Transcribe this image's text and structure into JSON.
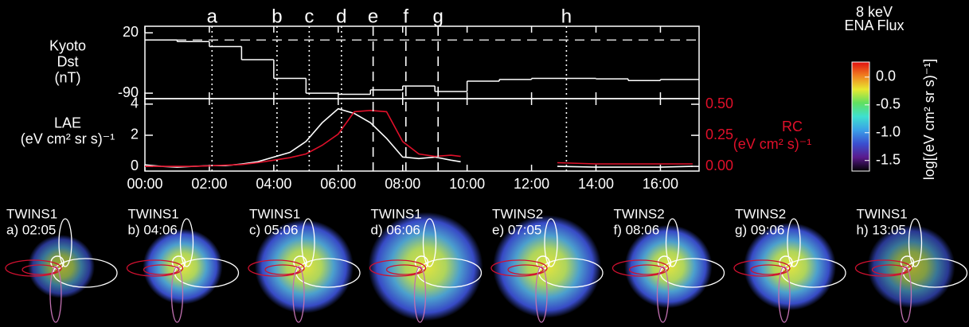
{
  "chart_data": [
    {
      "type": "line",
      "step": true,
      "ylabel": [
        "Kyoto",
        "Dst",
        "(nT)"
      ],
      "x": [
        0,
        1,
        2,
        3,
        4,
        5,
        6,
        7,
        8,
        9,
        10,
        11,
        12,
        13,
        14,
        15,
        16
      ],
      "series": [
        {
          "color": "#ffffff",
          "values": [
            7,
            4,
            -5,
            -29,
            -63,
            -90,
            -92,
            -84,
            -77,
            -87,
            -68,
            -65,
            -63,
            -63,
            -64,
            -67,
            -65
          ]
        }
      ],
      "reference_line": 7,
      "xlim": [
        0,
        17.2
      ],
      "ylim": [
        -100,
        32
      ],
      "yticks": [
        20,
        -90
      ]
    },
    {
      "type": "line",
      "ylabel": [
        "LAE",
        "(eV cm² sr s)⁻¹"
      ],
      "y2label": [
        "RC",
        "(eV cm² s)⁻¹"
      ],
      "x": [
        0,
        0.5,
        1,
        1.5,
        2,
        2.5,
        3,
        3.5,
        4,
        4.5,
        5,
        5.5,
        6,
        6.5,
        7,
        7.5,
        8,
        8.5,
        9,
        9.5,
        9.8,
        11,
        12.8,
        14,
        15,
        16,
        17
      ],
      "series": [
        {
          "color": "#ffffff",
          "values": [
            0.1,
            0.0,
            -0.05,
            0,
            0.05,
            0.05,
            0.15,
            0.3,
            0.6,
            0.9,
            1.6,
            2.8,
            3.7,
            3.4,
            2.8,
            1.8,
            0.6,
            0.5,
            0.6,
            0.4,
            0.3,
            null,
            0.0,
            -0.05,
            -0.05,
            -0.05,
            0.0
          ]
        },
        {
          "color": "#e0102a",
          "axis": "y2",
          "values": [
            0,
            0,
            0,
            0,
            0.005,
            0.01,
            0.015,
            0.03,
            0.05,
            0.07,
            0.1,
            0.17,
            0.26,
            0.44,
            0.45,
            0.44,
            0.2,
            0.1,
            0.08,
            0.09,
            0.08,
            null,
            0.03,
            0.02,
            0.02,
            0.02,
            0.02
          ]
        }
      ],
      "xlim": [
        0,
        17.2
      ],
      "xticks": [
        {
          "value": 0,
          "label": "00:00"
        },
        {
          "value": 2,
          "label": "02:00"
        },
        {
          "value": 4,
          "label": "04:00"
        },
        {
          "value": 6,
          "label": "06:00"
        },
        {
          "value": 8,
          "label": "08:00"
        },
        {
          "value": 10,
          "label": "10:00"
        },
        {
          "value": 12,
          "label": "12:00"
        },
        {
          "value": 14,
          "label": "14:00"
        },
        {
          "value": 16,
          "label": "16:00"
        }
      ],
      "ylim": [
        -0.3,
        4.35
      ],
      "yticks": [
        0,
        2,
        4
      ],
      "y2lim": [
        -0.0375,
        0.545
      ],
      "y2ticks": [
        {
          "value": 0,
          "label": "0.00"
        },
        0.25,
        {
          "value": 0.5,
          "label": "0.50"
        }
      ],
      "events": [
        {
          "label": "a",
          "x": 2.083,
          "dash": "dotted"
        },
        {
          "label": "b",
          "x": 4.1,
          "dash": "dotted"
        },
        {
          "label": "c",
          "x": 5.1,
          "dash": "dotted"
        },
        {
          "label": "d",
          "x": 6.1,
          "dash": "dotted"
        },
        {
          "label": "e",
          "x": 7.083,
          "dash": "dashed"
        },
        {
          "label": "f",
          "x": 8.1,
          "dash": "dashed"
        },
        {
          "label": "g",
          "x": 9.1,
          "dash": "dashed"
        },
        {
          "label": "h",
          "x": 13.083,
          "dash": "dotted"
        }
      ]
    }
  ],
  "colorbar": {
    "title": [
      "8 keV",
      "ENA Flux"
    ],
    "label": "log[(eV cm² sr s)⁻¹]",
    "lim": [
      -1.69,
      0.27
    ],
    "ticks": [
      {
        "value": 0,
        "label": "0.0"
      },
      -0.5,
      {
        "value": -1,
        "label": "-1.0"
      },
      -1.5
    ],
    "colors": [
      "#000000",
      "#5a1a8c",
      "#3a4ed0",
      "#3aa0e8",
      "#3ee0d0",
      "#60e060",
      "#e8e830",
      "#f08020",
      "#e01010"
    ]
  },
  "panels": [
    {
      "satellite": "TWINS1",
      "label": "a) 02:05"
    },
    {
      "satellite": "TWINS1",
      "label": "b) 04:06"
    },
    {
      "satellite": "TWINS1",
      "label": "c) 05:06"
    },
    {
      "satellite": "TWINS1",
      "label": "d) 06:06"
    },
    {
      "satellite": "TWINS2",
      "label": "e) 07:05"
    },
    {
      "satellite": "TWINS2",
      "label": "f) 08:06"
    },
    {
      "satellite": "TWINS2",
      "label": "g) 09:06"
    },
    {
      "satellite": "TWINS1",
      "label": "h) 13:05"
    }
  ]
}
